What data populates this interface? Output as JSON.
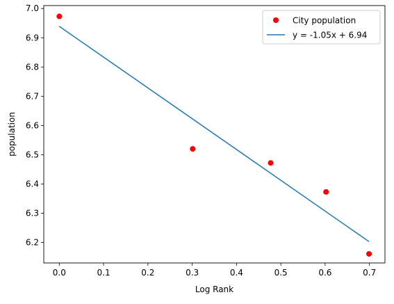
{
  "chart_data": {
    "type": "scatter",
    "xlabel": "Log Rank",
    "ylabel": "population",
    "xlim": [
      -0.035,
      0.735
    ],
    "ylim": [
      6.13,
      7.01
    ],
    "xticks": [
      0.0,
      0.1,
      0.2,
      0.3,
      0.4,
      0.5,
      0.6,
      0.7
    ],
    "xtick_labels": [
      "0.0",
      "0.1",
      "0.2",
      "0.3",
      "0.4",
      "0.5",
      "0.6",
      "0.7"
    ],
    "yticks": [
      6.2,
      6.3,
      6.4,
      6.5,
      6.6,
      6.7,
      6.8,
      6.9,
      7.0
    ],
    "ytick_labels": [
      "6.2",
      "6.3",
      "6.4",
      "6.5",
      "6.6",
      "6.7",
      "6.8",
      "6.9",
      "7.0"
    ],
    "grid": false,
    "legend_position": "top-right",
    "series": [
      {
        "name": "City population",
        "kind": "scatter",
        "color": "#ff0000",
        "points": [
          {
            "x": 0.0,
            "y": 6.973
          },
          {
            "x": 0.301,
            "y": 6.52
          },
          {
            "x": 0.477,
            "y": 6.472
          },
          {
            "x": 0.602,
            "y": 6.373
          },
          {
            "x": 0.699,
            "y": 6.161
          }
        ]
      },
      {
        "name": "y = -1.05x + 6.94",
        "kind": "line",
        "color": "#1f77b4",
        "points": [
          {
            "x": 0.0,
            "y": 6.939
          },
          {
            "x": 0.699,
            "y": 6.203
          }
        ]
      }
    ]
  }
}
